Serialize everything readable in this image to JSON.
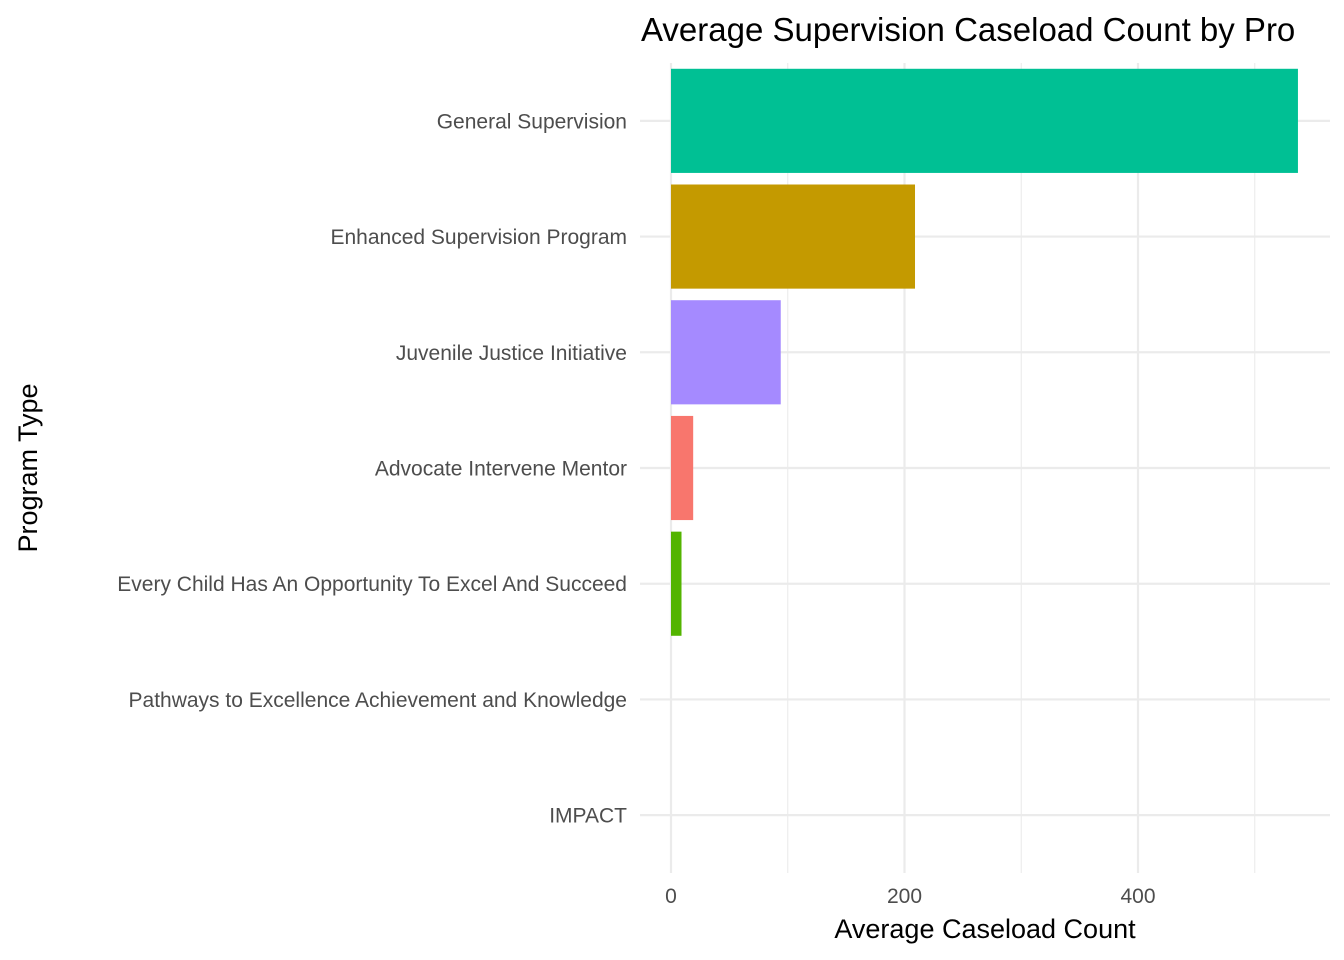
{
  "chart_data": {
    "type": "bar",
    "orientation": "horizontal",
    "title": "Average Supervision Caseload Count by Pro",
    "xlabel": "Average Caseload Count",
    "ylabel": "Program Type",
    "categories": [
      "General Supervision",
      "Enhanced Supervision Program",
      "Juvenile Justice Initiative",
      "Advocate Intervene Mentor",
      "Every Child Has An Opportunity To Excel And Succeed",
      "Pathways to Excellence Achievement and Knowledge",
      "IMPACT"
    ],
    "values": [
      537,
      209,
      94,
      19,
      9,
      0,
      0
    ],
    "colors": [
      "#00C094",
      "#C49A00",
      "#A58AFF",
      "#F8766D",
      "#53B400",
      "#00B6EB",
      "#FB61D7"
    ],
    "xlim": [
      -26,
      564
    ],
    "x_ticks": [
      0,
      200,
      400
    ],
    "x_tick_labels": [
      "0",
      "200",
      "400"
    ],
    "x_minor_ticks": [
      100,
      300,
      500
    ],
    "grid": true,
    "legend": "none"
  }
}
